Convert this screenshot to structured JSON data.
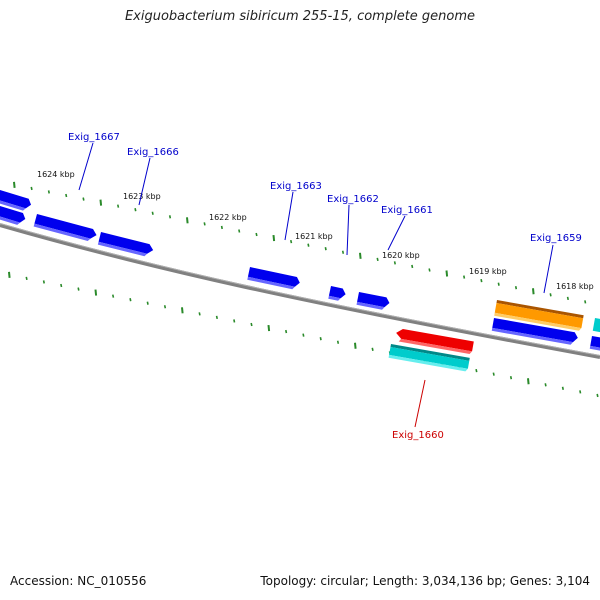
{
  "title": "Exiguobacterium sibiricum 255-15, complete genome",
  "footer": {
    "accession": "Accession: NC_010556",
    "summary": "Topology: circular; Length: 3,034,136 bp; Genes: 3,104"
  },
  "colors": {
    "forward_gene": "#0000ee",
    "reverse_cyan": "#00cccc",
    "highlight_red": "#ee0000",
    "highlight_orange": "#ff9900",
    "tick_green": "#2a8a2a",
    "backbone": "#808080",
    "label_blue": "#0000cc",
    "label_red": "#cc0000"
  },
  "kbp_labels": [
    "1624 kbp",
    "1623 kbp",
    "1622 kbp",
    "1621 kbp",
    "1620 kbp",
    "1619 kbp",
    "1618 kbp"
  ],
  "gene_labels": [
    {
      "text": "Exig_1667",
      "color": "blue"
    },
    {
      "text": "Exig_1666",
      "color": "blue"
    },
    {
      "text": "Exig_1663",
      "color": "blue"
    },
    {
      "text": "Exig_1662",
      "color": "blue"
    },
    {
      "text": "Exig_1661",
      "color": "blue"
    },
    {
      "text": "Exig_1659",
      "color": "blue"
    },
    {
      "text": "Exig_1660",
      "color": "red"
    }
  ]
}
